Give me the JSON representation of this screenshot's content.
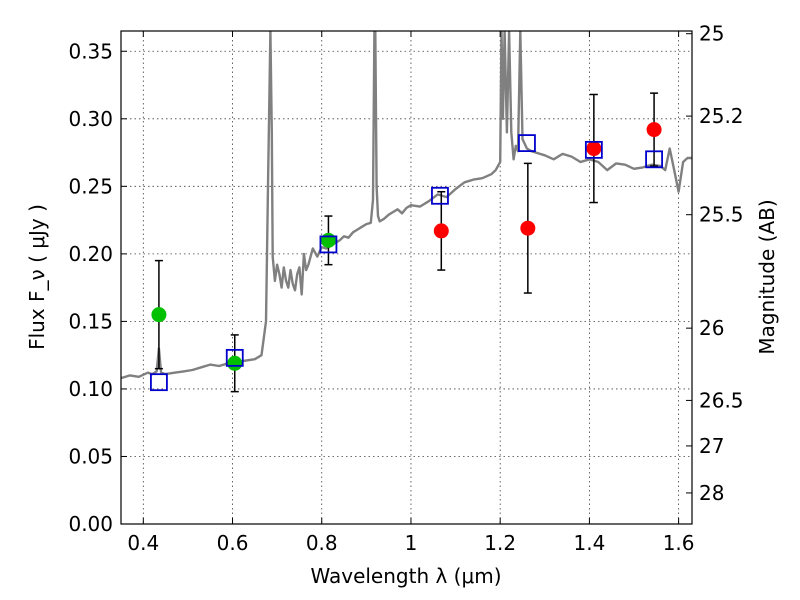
{
  "chart_data": {
    "type": "scatter",
    "title": "",
    "xlabel": "Wavelength  λ (μm)",
    "ylabel": "Flux  F_ν  ( μJy )",
    "ylabel_right": "Magnitude (AB)",
    "xlim": [
      0.35,
      1.63
    ],
    "ylim": [
      0,
      0.365
    ],
    "x_ticks": [
      0.4,
      0.6,
      0.8,
      1.0,
      1.2,
      1.4,
      1.6
    ],
    "x_tick_labels": [
      "0.4",
      "0.6",
      "0.8",
      "1",
      "1.2",
      "1.4",
      "1.6"
    ],
    "y_ticks": [
      0.0,
      0.05,
      0.1,
      0.15,
      0.2,
      0.25,
      0.3,
      0.35
    ],
    "y_tick_labels": [
      "0.00",
      "0.05",
      "0.10",
      "0.15",
      "0.20",
      "0.25",
      "0.30",
      "0.35"
    ],
    "right_ticks": [
      {
        "label": "25",
        "flux": 0.363
      },
      {
        "label": "25.2",
        "flux": 0.302
      },
      {
        "label": "25.5",
        "flux": 0.229
      },
      {
        "label": "26",
        "flux": 0.145
      },
      {
        "label": "26.5",
        "flux": 0.0915
      },
      {
        "label": "27",
        "flux": 0.0578
      },
      {
        "label": "28",
        "flux": 0.023
      }
    ],
    "grid": true,
    "colors": {
      "spectrum": "#808080",
      "green_points": "#00c000",
      "red_points": "#ff0000",
      "model_squares": "#0000cc",
      "errorbar": "#000000"
    },
    "series": [
      {
        "kind": "line",
        "x": [
          0.35,
          0.37,
          0.39,
          0.41,
          0.42,
          0.43,
          0.435,
          0.44,
          0.45,
          0.47,
          0.49,
          0.51,
          0.53,
          0.55,
          0.57,
          0.59,
          0.61,
          0.63,
          0.65,
          0.665,
          0.675,
          0.68,
          0.685,
          0.688,
          0.69,
          0.695,
          0.7,
          0.705,
          0.71,
          0.715,
          0.72,
          0.725,
          0.73,
          0.735,
          0.74,
          0.745,
          0.75,
          0.755,
          0.76,
          0.765,
          0.77,
          0.78,
          0.79,
          0.8,
          0.81,
          0.82,
          0.83,
          0.84,
          0.85,
          0.86,
          0.87,
          0.88,
          0.89,
          0.9,
          0.91,
          0.915,
          0.918,
          0.92,
          0.923,
          0.926,
          0.93,
          0.94,
          0.95,
          0.96,
          0.97,
          0.98,
          0.99,
          1.0,
          1.02,
          1.04,
          1.06,
          1.08,
          1.1,
          1.12,
          1.14,
          1.16,
          1.18,
          1.19,
          1.2,
          1.203,
          1.206,
          1.21,
          1.215,
          1.22,
          1.225,
          1.23,
          1.235,
          1.24,
          1.245,
          1.25,
          1.26,
          1.27,
          1.28,
          1.3,
          1.32,
          1.34,
          1.36,
          1.38,
          1.4,
          1.42,
          1.44,
          1.46,
          1.48,
          1.5,
          1.52,
          1.54,
          1.56,
          1.57,
          1.58,
          1.59,
          1.6,
          1.61,
          1.62,
          1.63
        ],
        "y": [
          0.108,
          0.11,
          0.109,
          0.112,
          0.111,
          0.113,
          0.13,
          0.112,
          0.111,
          0.112,
          0.113,
          0.114,
          0.116,
          0.118,
          0.117,
          0.119,
          0.12,
          0.121,
          0.122,
          0.125,
          0.15,
          0.26,
          0.365,
          0.29,
          0.198,
          0.18,
          0.192,
          0.185,
          0.175,
          0.19,
          0.18,
          0.175,
          0.188,
          0.178,
          0.173,
          0.185,
          0.19,
          0.17,
          0.2,
          0.188,
          0.192,
          0.204,
          0.198,
          0.205,
          0.204,
          0.206,
          0.208,
          0.21,
          0.213,
          0.212,
          0.216,
          0.218,
          0.22,
          0.222,
          0.223,
          0.24,
          0.365,
          0.365,
          0.25,
          0.228,
          0.224,
          0.226,
          0.229,
          0.231,
          0.233,
          0.23,
          0.234,
          0.236,
          0.235,
          0.239,
          0.244,
          0.242,
          0.248,
          0.253,
          0.255,
          0.256,
          0.259,
          0.262,
          0.268,
          0.365,
          0.3,
          0.365,
          0.29,
          0.365,
          0.29,
          0.27,
          0.28,
          0.276,
          0.365,
          0.285,
          0.278,
          0.276,
          0.275,
          0.273,
          0.27,
          0.274,
          0.272,
          0.268,
          0.27,
          0.268,
          0.262,
          0.267,
          0.266,
          0.263,
          0.264,
          0.266,
          0.265,
          0.262,
          0.278,
          0.262,
          0.246,
          0.268,
          0.271,
          0.271
        ]
      },
      {
        "kind": "points",
        "name": "green",
        "x": [
          0.435,
          0.605,
          0.815
        ],
        "y": [
          0.155,
          0.119,
          0.21
        ],
        "err": [
          0.04,
          0.021,
          0.018
        ]
      },
      {
        "kind": "points",
        "name": "red",
        "x": [
          1.068,
          1.262,
          1.41,
          1.545
        ],
        "y": [
          0.217,
          0.219,
          0.278,
          0.292
        ],
        "err": [
          0.029,
          0.048,
          0.04,
          0.027
        ]
      },
      {
        "kind": "squares",
        "name": "model",
        "x": [
          0.435,
          0.605,
          0.815,
          1.065,
          1.26,
          1.41,
          1.545
        ],
        "y": [
          0.105,
          0.123,
          0.207,
          0.243,
          0.282,
          0.277,
          0.27
        ]
      }
    ]
  }
}
